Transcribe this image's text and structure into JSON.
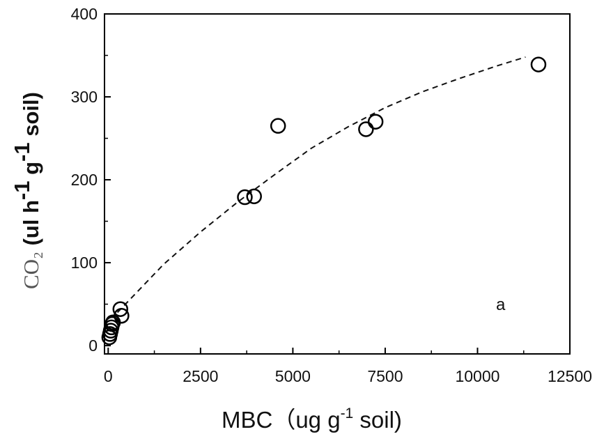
{
  "chart_data": {
    "type": "scatter",
    "xlabel": {
      "main": "MBC（ug g",
      "sup": "-1",
      "tail": " soil)"
    },
    "ylabel": {
      "prefix": "CO₂",
      "main": " (ul h",
      "sup1": "-1",
      "mid": " g",
      "sup2": "-1",
      "tail": " soil)"
    },
    "annotation": "a",
    "xlim": [
      -100,
      12500
    ],
    "ylim": [
      -10,
      400
    ],
    "x_ticks": [
      0,
      2500,
      5000,
      7500,
      10000,
      12500
    ],
    "x_tick_labels": [
      "0",
      "2500",
      "5000",
      "7500",
      "10000",
      "12500"
    ],
    "y_ticks": [
      0,
      100,
      200,
      300,
      400
    ],
    "y_tick_labels": [
      "0",
      "100",
      "200",
      "300",
      "400"
    ],
    "series": [
      {
        "marker": "open-circle",
        "x": [
          30,
          50,
          70,
          90,
          110,
          130,
          330,
          360,
          3700,
          3950,
          4600,
          6980,
          7240,
          11650
        ],
        "y": [
          10,
          14,
          18,
          22,
          26,
          28,
          44,
          36,
          179,
          180,
          265,
          261,
          270,
          339
        ]
      },
      {
        "type": "fit",
        "style": "dashed",
        "x": [
          250,
          1500,
          2500,
          3500,
          4500,
          5500,
          6500,
          7500,
          8500,
          9500,
          10500,
          11300
        ],
        "y": [
          40,
          98,
          137,
          173,
          206,
          238,
          264,
          287,
          306,
          322,
          337,
          348
        ]
      }
    ]
  }
}
